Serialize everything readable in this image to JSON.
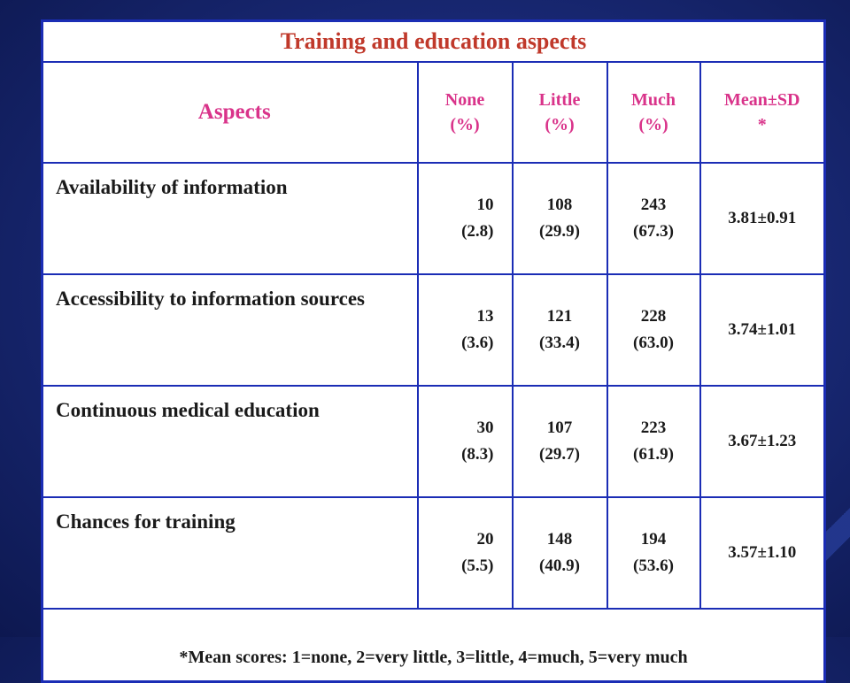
{
  "table": {
    "title": "Training and education aspects",
    "headers": {
      "aspects": "Aspects",
      "none": [
        "None",
        "(%)"
      ],
      "little": [
        "Little",
        "(%)"
      ],
      "much": [
        "Much",
        "(%)"
      ],
      "mean": [
        "Mean±SD",
        "*"
      ]
    },
    "rows": [
      {
        "aspect": "Availability of information",
        "none": [
          "10",
          "(2.8)"
        ],
        "little": [
          "108",
          "(29.9)"
        ],
        "much": [
          "243",
          "(67.3)"
        ],
        "mean": "3.81±0.91"
      },
      {
        "aspect": "Accessibility to information sources",
        "none": [
          "13",
          "(3.6)"
        ],
        "little": [
          "121",
          "(33.4)"
        ],
        "much": [
          "228",
          "(63.0)"
        ],
        "mean": "3.74±1.01"
      },
      {
        "aspect": "Continuous medical education",
        "none": [
          "30",
          "(8.3)"
        ],
        "little": [
          "107",
          "(29.7)"
        ],
        "much": [
          "223",
          "(61.9)"
        ],
        "mean": "3.67±1.23"
      },
      {
        "aspect": "Chances for training",
        "none": [
          "20",
          "(5.5)"
        ],
        "little": [
          "148",
          "(40.9)"
        ],
        "much": [
          "194",
          "(53.6)"
        ],
        "mean": "3.57±1.10"
      }
    ],
    "footnote": "*Mean scores: 1=none, 2=very little, 3=little, 4=much, 5=very much"
  }
}
